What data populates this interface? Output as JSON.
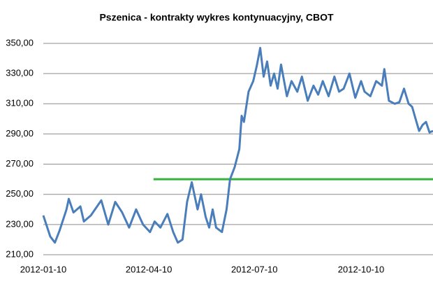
{
  "chart_data": {
    "type": "line",
    "title": "Pszenica - kontrakty wykres kontynuacyjny, CBOT",
    "x": [
      "2012-01-10",
      "2012-01-16",
      "2012-01-20",
      "2012-01-24",
      "2012-01-30",
      "2012-02-01",
      "2012-02-05",
      "2012-02-11",
      "2012-02-14",
      "2012-02-20",
      "2012-02-29",
      "2012-03-06",
      "2012-03-12",
      "2012-03-18",
      "2012-03-24",
      "2012-03-30",
      "2012-04-05",
      "2012-04-11",
      "2012-04-15",
      "2012-04-20",
      "2012-04-26",
      "2012-05-01",
      "2012-05-05",
      "2012-05-09",
      "2012-05-13",
      "2012-05-17",
      "2012-05-22",
      "2012-05-25",
      "2012-05-29",
      "2012-06-01",
      "2012-06-04",
      "2012-06-07",
      "2012-06-12",
      "2012-06-16",
      "2012-06-19",
      "2012-06-23",
      "2012-06-27",
      "2012-06-29",
      "2012-07-01",
      "2012-07-05",
      "2012-07-09",
      "2012-07-12",
      "2012-07-15",
      "2012-07-18",
      "2012-07-21",
      "2012-07-24",
      "2012-07-27",
      "2012-07-30",
      "2012-08-02",
      "2012-08-07",
      "2012-08-11",
      "2012-08-16",
      "2012-08-20",
      "2012-08-25",
      "2012-08-30",
      "2012-09-03",
      "2012-09-07",
      "2012-09-12",
      "2012-09-17",
      "2012-09-21",
      "2012-09-25",
      "2012-09-30",
      "2012-10-05",
      "2012-10-10",
      "2012-10-13",
      "2012-10-18",
      "2012-10-23",
      "2012-10-28",
      "2012-10-30",
      "2012-11-03",
      "2012-11-08",
      "2012-11-12",
      "2012-11-16",
      "2012-11-20",
      "2012-11-23",
      "2012-11-26",
      "2012-11-29",
      "2012-12-02",
      "2012-12-05",
      "2012-12-08",
      "2012-12-11"
    ],
    "series": [
      {
        "name": "Pszenica",
        "color": "#4a7ebb",
        "values": [
          236,
          222,
          218,
          226,
          240,
          247,
          238,
          242,
          232,
          236,
          246,
          230,
          245,
          238,
          228,
          240,
          230,
          225,
          232,
          228,
          237,
          225,
          218,
          220,
          245,
          258,
          240,
          250,
          235,
          228,
          240,
          228,
          225,
          240,
          260,
          268,
          280,
          302,
          298,
          318,
          325,
          335,
          347,
          328,
          338,
          322,
          330,
          320,
          336,
          315,
          325,
          318,
          328,
          312,
          322,
          316,
          325,
          315,
          328,
          318,
          320,
          330,
          314,
          325,
          318,
          315,
          325,
          322,
          333,
          312,
          310,
          311,
          320,
          310,
          308,
          300,
          292,
          296,
          298,
          291,
          292
        ]
      }
    ],
    "xlim": [
      "2012-01-10",
      "2012-12-11"
    ],
    "xticks": [
      "2012-01-10",
      "2012-04-10",
      "2012-07-10",
      "2012-10-10"
    ],
    "ylim": [
      210,
      350
    ],
    "yticks": [
      {
        "value": 210,
        "label": "210,00"
      },
      {
        "value": 230,
        "label": "230,00"
      },
      {
        "value": 250,
        "label": "250,00"
      },
      {
        "value": 270,
        "label": "270,00"
      },
      {
        "value": 290,
        "label": "290,00"
      },
      {
        "value": 310,
        "label": "310,00"
      },
      {
        "value": 330,
        "label": "330,00"
      },
      {
        "value": 350,
        "label": "350,00"
      }
    ],
    "grid": true,
    "reference_line": {
      "value": 260,
      "x": [
        "2012-04-14",
        "2012-12-11"
      ],
      "color": "#33b33c"
    }
  }
}
